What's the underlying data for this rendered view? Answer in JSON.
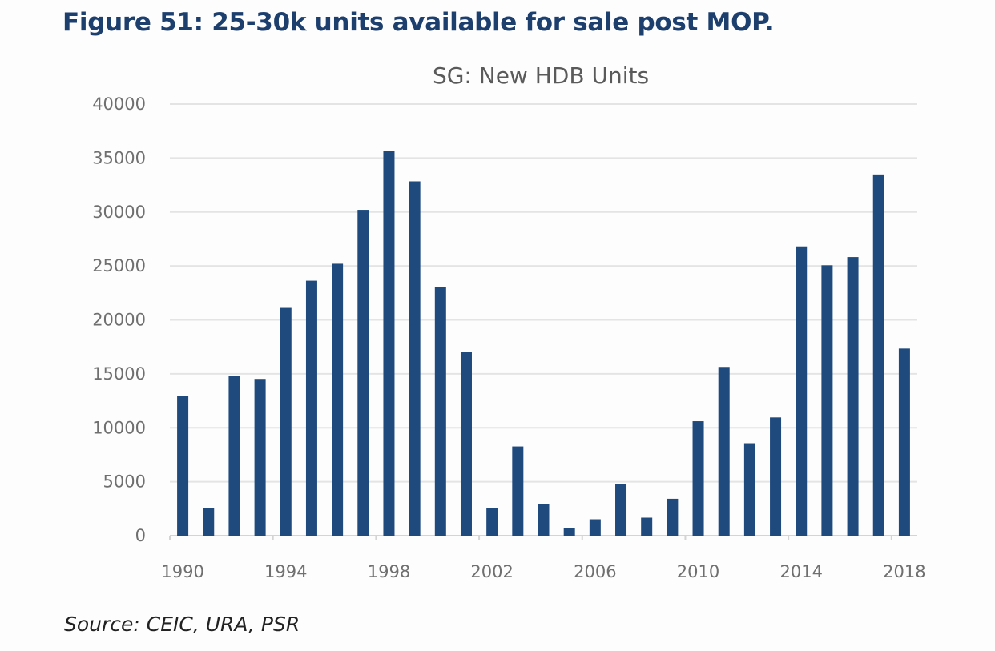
{
  "figure_title": "Figure 51: 25-30k units available for sale post MOP.",
  "source": "Source: CEIC, URA, PSR",
  "chart_data": {
    "type": "bar",
    "title": "SG: New HDB Units",
    "xlabel": "",
    "ylabel": "",
    "ylim": [
      0,
      40000
    ],
    "yticks": [
      0,
      5000,
      10000,
      15000,
      20000,
      25000,
      30000,
      35000,
      40000
    ],
    "xtick_labels": [
      "1990",
      "1994",
      "1998",
      "2002",
      "2006",
      "2010",
      "2014",
      "2018"
    ],
    "grid": true,
    "bar_color": "#1f4a7e",
    "categories": [
      1990,
      1991,
      1992,
      1993,
      1994,
      1995,
      1996,
      1997,
      1998,
      1999,
      2000,
      2001,
      2002,
      2003,
      2004,
      2005,
      2006,
      2007,
      2008,
      2009,
      2010,
      2011,
      2012,
      2013,
      2014,
      2015,
      2016,
      2017,
      2018
    ],
    "values": [
      12950,
      2540,
      14830,
      14530,
      21110,
      23630,
      25200,
      30200,
      35640,
      32840,
      23010,
      17020,
      2540,
      8270,
      2900,
      730,
      1520,
      4820,
      1670,
      3420,
      10610,
      15640,
      8570,
      10960,
      26810,
      25060,
      25820,
      33480,
      17340
    ]
  }
}
